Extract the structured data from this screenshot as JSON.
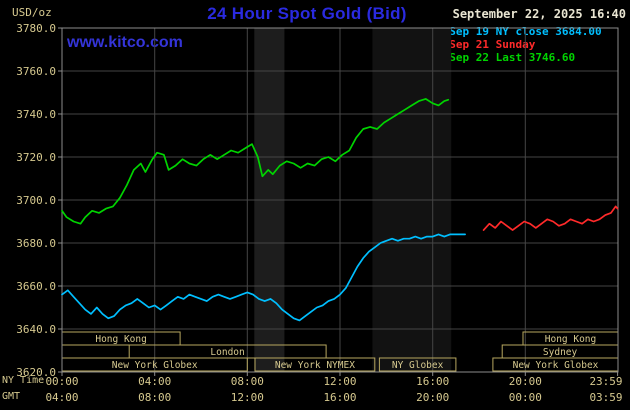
{
  "header": {
    "unit": "USD/oz",
    "title": "24 Hour Spot Gold (Bid)",
    "datetime": "September 22, 2025 16:40",
    "watermark": "www.kitco.com",
    "legend": [
      {
        "label": "Sep 19 NY close 3684.00",
        "color": "#00bfff"
      },
      {
        "label": "Sep 21 Sunday",
        "color": "#ff2a2a"
      },
      {
        "label": "Sep 22 Last 3746.60",
        "color": "#00d400"
      }
    ]
  },
  "axes": {
    "y_ticks": [
      {
        "value": 3780,
        "label": "3780.0"
      },
      {
        "value": 3760,
        "label": "3760.0"
      },
      {
        "value": 3740,
        "label": "3740.0"
      },
      {
        "value": 3720,
        "label": "3720.0"
      },
      {
        "value": 3700,
        "label": "3700.0"
      },
      {
        "value": 3680,
        "label": "3680.0"
      },
      {
        "value": 3660,
        "label": "3660.0"
      },
      {
        "value": 3640,
        "label": "3640.0"
      },
      {
        "value": 3620,
        "label": "3620.0"
      }
    ],
    "x_rows": [
      {
        "name": "NY Time"
      },
      {
        "name": "GMT"
      }
    ],
    "x_ticks": [
      {
        "t": 0,
        "ny": "00:00",
        "gmt": "04:00"
      },
      {
        "t": 4,
        "ny": "04:00",
        "gmt": "08:00"
      },
      {
        "t": 8,
        "ny": "08:00",
        "gmt": "12:00"
      },
      {
        "t": 12,
        "ny": "12:00",
        "gmt": "16:00"
      },
      {
        "t": 16,
        "ny": "16:00",
        "gmt": "20:00"
      },
      {
        "t": 20,
        "ny": "20:00",
        "gmt": "00:00"
      },
      {
        "t": 23.983,
        "ny": "23:59",
        "gmt": "03:59"
      }
    ]
  },
  "colors": {
    "background": "#000000",
    "grid": "#454545",
    "border": "#8d8d8d",
    "axis_text": "#d6c98f",
    "session_box": "#b7a75f",
    "title_blue": "#2a2ae0"
  },
  "chart_data": {
    "type": "line",
    "title": "24 Hour Spot Gold (Bid)",
    "x_unit": "hours (NY Time)",
    "y_unit": "USD/oz",
    "xlim": [
      0,
      24
    ],
    "ylim": [
      3620,
      3780
    ],
    "grid": true,
    "legend_position": "top-right",
    "background": "#000000",
    "bands": [
      {
        "start": 8.3,
        "end": 9.6,
        "color": "#1d1d1d"
      },
      {
        "start": 13.4,
        "end": 16.8,
        "color": "#121212"
      }
    ],
    "sessions": [
      {
        "row": 0,
        "start": 0,
        "end": 5.1,
        "label": "Hong Kong"
      },
      {
        "row": 0,
        "start": 19.9,
        "end": 24,
        "label": "Hong Kong"
      },
      {
        "row": 1,
        "start": 2.9,
        "end": 11.4,
        "label": "London"
      },
      {
        "row": 1,
        "start": 19.0,
        "end": 24,
        "label": "Sydney"
      },
      {
        "row": 2,
        "start": 0,
        "end": 8.0,
        "label": "New York Globex"
      },
      {
        "row": 2,
        "start": 8.33,
        "end": 13.5,
        "label": "New York NYMEX"
      },
      {
        "row": 2,
        "start": 13.7,
        "end": 17.0,
        "label": "NY Globex"
      },
      {
        "row": 2,
        "start": 18.6,
        "end": 24,
        "label": "New York Globex"
      }
    ],
    "series": [
      {
        "name": "Sep 19 NY close 3684.00",
        "color": "#00bfff",
        "points": [
          [
            0,
            3656
          ],
          [
            0.25,
            3658
          ],
          [
            0.5,
            3655
          ],
          [
            0.75,
            3652
          ],
          [
            1,
            3649
          ],
          [
            1.25,
            3647
          ],
          [
            1.5,
            3650
          ],
          [
            1.75,
            3647
          ],
          [
            2,
            3645
          ],
          [
            2.25,
            3646
          ],
          [
            2.5,
            3649
          ],
          [
            2.75,
            3651
          ],
          [
            3,
            3652
          ],
          [
            3.25,
            3654
          ],
          [
            3.5,
            3652
          ],
          [
            3.75,
            3650
          ],
          [
            4,
            3651
          ],
          [
            4.25,
            3649
          ],
          [
            4.5,
            3651
          ],
          [
            4.75,
            3653
          ],
          [
            5,
            3655
          ],
          [
            5.25,
            3654
          ],
          [
            5.5,
            3656
          ],
          [
            5.75,
            3655
          ],
          [
            6,
            3654
          ],
          [
            6.25,
            3653
          ],
          [
            6.5,
            3655
          ],
          [
            6.75,
            3656
          ],
          [
            7,
            3655
          ],
          [
            7.25,
            3654
          ],
          [
            7.5,
            3655
          ],
          [
            7.75,
            3656
          ],
          [
            8,
            3657
          ],
          [
            8.25,
            3656
          ],
          [
            8.5,
            3654
          ],
          [
            8.75,
            3653
          ],
          [
            9,
            3654
          ],
          [
            9.25,
            3652
          ],
          [
            9.5,
            3649
          ],
          [
            9.75,
            3647
          ],
          [
            10,
            3645
          ],
          [
            10.25,
            3644
          ],
          [
            10.5,
            3646
          ],
          [
            10.75,
            3648
          ],
          [
            11,
            3650
          ],
          [
            11.25,
            3651
          ],
          [
            11.5,
            3653
          ],
          [
            11.75,
            3654
          ],
          [
            12,
            3656
          ],
          [
            12.25,
            3659
          ],
          [
            12.5,
            3664
          ],
          [
            12.75,
            3669
          ],
          [
            13,
            3673
          ],
          [
            13.25,
            3676
          ],
          [
            13.5,
            3678
          ],
          [
            13.75,
            3680
          ],
          [
            14,
            3681
          ],
          [
            14.25,
            3682
          ],
          [
            14.5,
            3681
          ],
          [
            14.75,
            3682
          ],
          [
            15,
            3682
          ],
          [
            15.25,
            3683
          ],
          [
            15.5,
            3682
          ],
          [
            15.75,
            3683
          ],
          [
            16,
            3683
          ],
          [
            16.25,
            3684
          ],
          [
            16.5,
            3683
          ],
          [
            16.75,
            3684
          ],
          [
            17,
            3684
          ],
          [
            17.4,
            3684
          ]
        ]
      },
      {
        "name": "Sep 21 Sunday",
        "color": "#ff2a2a",
        "points": [
          [
            18.2,
            3686
          ],
          [
            18.45,
            3689
          ],
          [
            18.7,
            3687
          ],
          [
            18.95,
            3690
          ],
          [
            19.2,
            3688
          ],
          [
            19.45,
            3686
          ],
          [
            19.7,
            3688
          ],
          [
            19.95,
            3690
          ],
          [
            20.2,
            3689
          ],
          [
            20.45,
            3687
          ],
          [
            20.7,
            3689
          ],
          [
            20.95,
            3691
          ],
          [
            21.2,
            3690
          ],
          [
            21.45,
            3688
          ],
          [
            21.7,
            3689
          ],
          [
            21.95,
            3691
          ],
          [
            22.2,
            3690
          ],
          [
            22.45,
            3689
          ],
          [
            22.7,
            3691
          ],
          [
            22.95,
            3690
          ],
          [
            23.2,
            3691
          ],
          [
            23.45,
            3693
          ],
          [
            23.7,
            3694
          ],
          [
            23.9,
            3697
          ],
          [
            23.98,
            3696
          ]
        ]
      },
      {
        "name": "Sep 22 Last 3746.60",
        "color": "#00d400",
        "points": [
          [
            0,
            3695
          ],
          [
            0.2,
            3692
          ],
          [
            0.5,
            3690
          ],
          [
            0.8,
            3689
          ],
          [
            1,
            3692
          ],
          [
            1.3,
            3695
          ],
          [
            1.6,
            3694
          ],
          [
            1.9,
            3696
          ],
          [
            2.2,
            3697
          ],
          [
            2.5,
            3701
          ],
          [
            2.8,
            3707
          ],
          [
            3.1,
            3714
          ],
          [
            3.4,
            3717
          ],
          [
            3.6,
            3713
          ],
          [
            3.9,
            3719
          ],
          [
            4.1,
            3722
          ],
          [
            4.4,
            3721
          ],
          [
            4.6,
            3714
          ],
          [
            4.9,
            3716
          ],
          [
            5.2,
            3719
          ],
          [
            5.5,
            3717
          ],
          [
            5.8,
            3716
          ],
          [
            6.1,
            3719
          ],
          [
            6.4,
            3721
          ],
          [
            6.7,
            3719
          ],
          [
            7,
            3721
          ],
          [
            7.3,
            3723
          ],
          [
            7.6,
            3722
          ],
          [
            7.9,
            3724
          ],
          [
            8.2,
            3726
          ],
          [
            8.45,
            3720
          ],
          [
            8.65,
            3711
          ],
          [
            8.9,
            3714
          ],
          [
            9.1,
            3712
          ],
          [
            9.4,
            3716
          ],
          [
            9.7,
            3718
          ],
          [
            10,
            3717
          ],
          [
            10.3,
            3715
          ],
          [
            10.6,
            3717
          ],
          [
            10.9,
            3716
          ],
          [
            11.2,
            3719
          ],
          [
            11.5,
            3720
          ],
          [
            11.8,
            3718
          ],
          [
            12.1,
            3721
          ],
          [
            12.4,
            3723
          ],
          [
            12.7,
            3729
          ],
          [
            13,
            3733
          ],
          [
            13.3,
            3734
          ],
          [
            13.6,
            3733
          ],
          [
            13.9,
            3736
          ],
          [
            14.2,
            3738
          ],
          [
            14.5,
            3740
          ],
          [
            14.8,
            3742
          ],
          [
            15.1,
            3744
          ],
          [
            15.4,
            3746
          ],
          [
            15.7,
            3747
          ],
          [
            16,
            3745
          ],
          [
            16.25,
            3744
          ],
          [
            16.5,
            3746
          ],
          [
            16.67,
            3746.6
          ]
        ]
      }
    ]
  }
}
